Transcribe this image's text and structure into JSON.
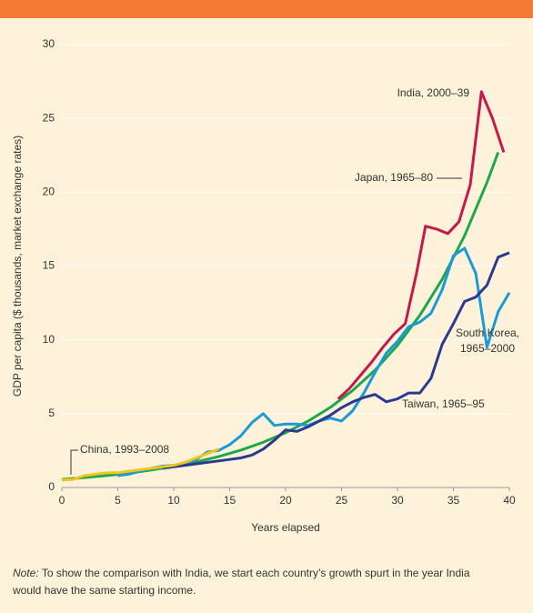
{
  "chart_data": {
    "type": "line",
    "xlabel": "Years elapsed",
    "ylabel": "GDP per capita ($ thousands, market exchange rates)",
    "xlim": [
      0,
      40
    ],
    "xticks": [
      0,
      5,
      10,
      15,
      20,
      25,
      30,
      35,
      40
    ],
    "ylim": [
      0,
      30
    ],
    "yticks": [
      0,
      5,
      10,
      15,
      20,
      25,
      30
    ],
    "grid": true,
    "series": [
      {
        "name": "India, 2000–39",
        "color": "#1ea84a",
        "x": [
          0,
          2,
          4,
          6,
          8,
          10,
          12,
          14,
          16,
          18,
          20,
          22,
          24,
          26,
          28,
          30,
          32,
          34,
          36,
          38,
          39
        ],
        "values": [
          0.55,
          0.67,
          0.81,
          0.97,
          1.18,
          1.43,
          1.73,
          2.09,
          2.53,
          3.06,
          3.71,
          4.49,
          5.43,
          6.57,
          7.95,
          9.63,
          11.66,
          14.1,
          17.06,
          20.66,
          22.7
        ]
      },
      {
        "name": "Japan, 1965–80",
        "color": "#c8174a",
        "x": [
          24.7,
          25.7,
          26.7,
          27.7,
          28.7,
          29.7,
          30.7,
          31.7,
          32.5,
          33.5,
          34.5,
          35.5,
          36.5,
          37.5,
          38.5,
          39.5
        ],
        "values": [
          6.0,
          6.7,
          7.6,
          8.5,
          9.5,
          10.4,
          11.1,
          14.5,
          17.7,
          17.5,
          17.2,
          18.0,
          20.5,
          26.8,
          25.0,
          22.7
        ]
      },
      {
        "name": "South Korea, 1965–2000",
        "color": "#1b9ad6",
        "x": [
          5,
          6,
          7,
          8,
          9,
          10,
          11,
          12,
          13,
          14,
          15,
          16,
          17,
          18,
          19,
          20,
          21,
          22,
          23,
          24,
          25,
          26,
          27,
          28,
          29,
          30,
          31,
          32,
          33,
          34,
          35,
          36,
          37,
          38,
          39,
          40
        ],
        "values": [
          0.8,
          0.9,
          1.1,
          1.3,
          1.45,
          1.5,
          1.6,
          1.9,
          2.4,
          2.5,
          2.9,
          3.5,
          4.4,
          5.0,
          4.2,
          4.3,
          4.3,
          4.2,
          4.5,
          4.7,
          4.5,
          5.2,
          6.4,
          7.8,
          9.1,
          9.9,
          10.9,
          11.2,
          11.8,
          13.4,
          15.7,
          16.2,
          14.5,
          9.5,
          11.9,
          13.2
        ]
      },
      {
        "name": "Taiwan, 1965–95",
        "color": "#2b3a8f",
        "x": [
          9,
          10,
          11,
          12,
          13,
          14,
          15,
          16,
          17,
          18,
          19,
          20,
          21,
          22,
          23,
          24,
          25,
          26,
          27,
          28,
          29,
          30,
          31,
          32,
          33,
          34,
          35,
          36,
          37,
          38,
          39,
          40
        ],
        "values": [
          1.3,
          1.4,
          1.5,
          1.6,
          1.7,
          1.8,
          1.9,
          2.0,
          2.2,
          2.6,
          3.2,
          3.9,
          3.8,
          4.1,
          4.5,
          4.9,
          5.4,
          5.8,
          6.1,
          6.3,
          5.8,
          6.0,
          6.4,
          6.4,
          7.4,
          9.7,
          11.1,
          12.6,
          12.9,
          13.7,
          15.6,
          15.9
        ]
      },
      {
        "name": "China, 1993–2008",
        "color": "#f5c419",
        "x": [
          0,
          1,
          2,
          3,
          4,
          5,
          6,
          7,
          8,
          9,
          10,
          11,
          12,
          13,
          14
        ],
        "values": [
          0.5,
          0.55,
          0.8,
          0.9,
          1.0,
          1.0,
          1.1,
          1.2,
          1.3,
          1.4,
          1.5,
          1.7,
          2.0,
          2.3,
          2.6
        ]
      }
    ],
    "note": {
      "label": "Note:",
      "lines": [
        "To show the comparison with India, we start each country’s growth spurt in the year India",
        "would have the same starting income."
      ]
    }
  }
}
